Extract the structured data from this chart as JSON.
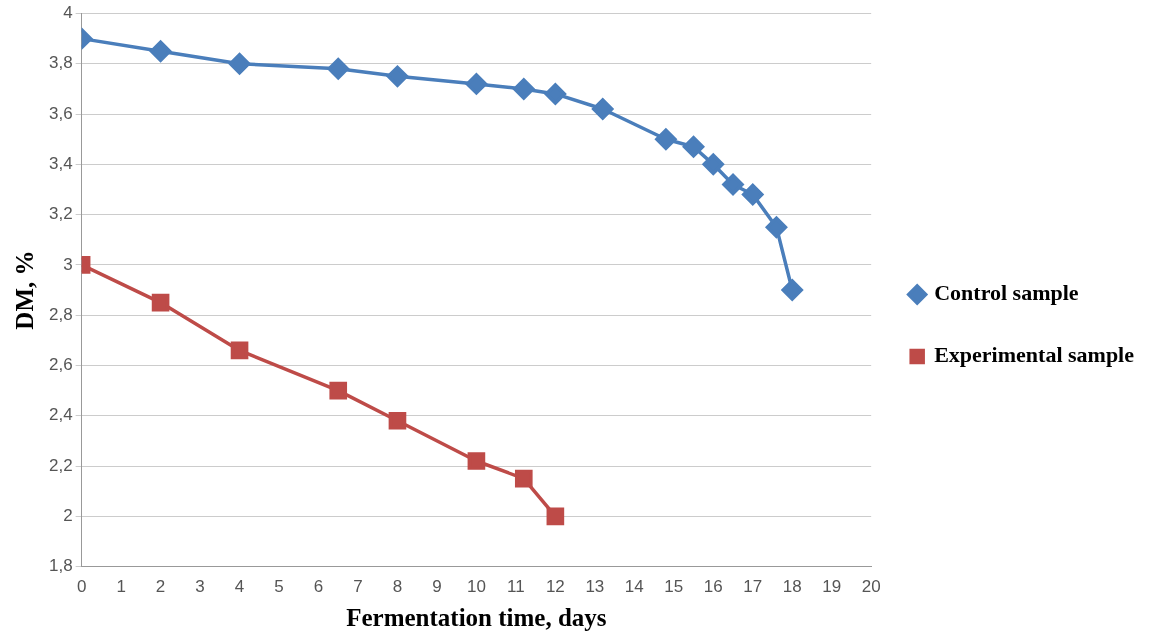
{
  "chart_data": {
    "type": "line",
    "xlabel": "Fermentation time, days",
    "ylabel": "DM, %",
    "xlim": [
      0,
      20
    ],
    "xticks": [
      0,
      1,
      2,
      3,
      4,
      5,
      6,
      7,
      8,
      9,
      10,
      11,
      12,
      13,
      14,
      15,
      16,
      17,
      18,
      19,
      20
    ],
    "ylim": [
      1.8,
      4
    ],
    "yticks": [
      {
        "value": 1.8,
        "label": "1,8"
      },
      2,
      {
        "value": 2.2,
        "label": "2,2"
      },
      {
        "value": 2.4,
        "label": "2,4"
      },
      {
        "value": 2.6,
        "label": "2,6"
      },
      {
        "value": 2.8,
        "label": "2,8"
      },
      3,
      {
        "value": 3.2,
        "label": "3,2"
      },
      {
        "value": 3.4,
        "label": "3,4"
      },
      {
        "value": 3.6,
        "label": "3,6"
      },
      {
        "value": 3.8,
        "label": "3,8"
      },
      4
    ],
    "grid": "y",
    "legend": "right",
    "series": [
      {
        "name": "Control sample",
        "color": "#4a7ebb",
        "marker": "diamond",
        "x": [
          0,
          2,
          4,
          6.5,
          8,
          10,
          11.2,
          12,
          13.2,
          14.8,
          15.5,
          16,
          16.5,
          17,
          17.6,
          18
        ],
        "values": [
          3.9,
          3.85,
          3.8,
          3.78,
          3.75,
          3.72,
          3.7,
          3.68,
          3.62,
          3.5,
          3.47,
          3.4,
          3.32,
          3.28,
          3.15,
          2.9
        ]
      },
      {
        "name": "Experimental sample",
        "color": "#be4b48",
        "marker": "square",
        "x": [
          0,
          2,
          4,
          6.5,
          8,
          10,
          11.2,
          12
        ],
        "values": [
          3.0,
          2.85,
          2.66,
          2.5,
          2.38,
          2.22,
          2.15,
          2.0
        ]
      }
    ]
  }
}
